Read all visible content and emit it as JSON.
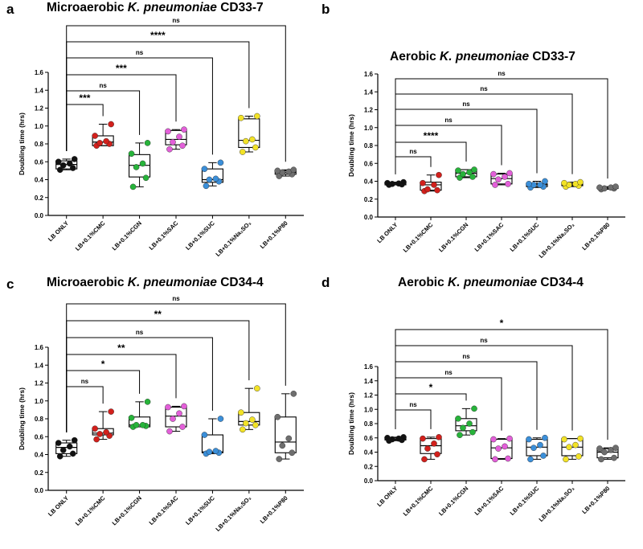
{
  "panels": [
    {
      "label": "a",
      "title": {
        "pre": "Microaerobic ",
        "species": "K. pneumoniae",
        "post": " CD33-7"
      }
    },
    {
      "label": "b",
      "title": {
        "pre": "Aerobic ",
        "species": "K. pneumoniae",
        "post": " CD33-7"
      }
    },
    {
      "label": "c",
      "title": {
        "pre": "Microaerobic ",
        "species": "K. pneumoniae",
        "post": " CD34-4"
      }
    },
    {
      "label": "d",
      "title": {
        "pre": "Aerobic ",
        "species": "K. pneumoniae",
        "post": " CD34-4"
      }
    }
  ],
  "chart_data": [
    {
      "type": "box",
      "title": "Microaerobic K. pneumoniae CD33-7",
      "xlabel": "",
      "ylabel": "Doubling time (hrs)",
      "ylim": [
        0,
        1.6
      ],
      "yticks": [
        "0.0",
        "0.2",
        "0.4",
        "0.6",
        "0.8",
        "1.0",
        "1.2",
        "1.4",
        "1.6"
      ],
      "categories": [
        "LB ONLY",
        "LB+0.1%CMC",
        "LB+0.1%CGN",
        "LB+0.1%SAC",
        "LB+0.1%SUC",
        "LB+0.1%Na₂SO₃",
        "LB+0.1%P80"
      ],
      "series_colors": [
        "#111111",
        "#d2201c",
        "#27b33a",
        "#e35fd9",
        "#3b8fd9",
        "#f2e227",
        "#6e6e6e"
      ],
      "boxes": [
        {
          "min": 0.51,
          "q1": 0.52,
          "median": 0.57,
          "q3": 0.61,
          "max": 0.63,
          "points": [
            0.51,
            0.53,
            0.56,
            0.58,
            0.6,
            0.63
          ]
        },
        {
          "min": 0.78,
          "q1": 0.78,
          "median": 0.82,
          "q3": 0.89,
          "max": 1.02,
          "points": [
            0.78,
            0.8,
            0.81,
            0.83,
            0.89,
            1.02
          ]
        },
        {
          "min": 0.32,
          "q1": 0.43,
          "median": 0.56,
          "q3": 0.68,
          "max": 0.81,
          "points": [
            0.32,
            0.42,
            0.54,
            0.58,
            0.69,
            0.81
          ]
        },
        {
          "min": 0.74,
          "q1": 0.79,
          "median": 0.85,
          "q3": 0.95,
          "max": 0.96,
          "points": [
            0.74,
            0.78,
            0.82,
            0.88,
            0.94,
            0.96
          ]
        },
        {
          "min": 0.33,
          "q1": 0.37,
          "median": 0.4,
          "q3": 0.52,
          "max": 0.59,
          "points": [
            0.33,
            0.38,
            0.4,
            0.41,
            0.52,
            0.59
          ]
        },
        {
          "min": 0.71,
          "q1": 0.76,
          "median": 0.84,
          "q3": 1.08,
          "max": 1.11,
          "points": [
            0.71,
            0.76,
            0.83,
            0.85,
            1.09,
            1.11
          ]
        },
        {
          "min": 0.44,
          "q1": 0.46,
          "median": 0.48,
          "q3": 0.5,
          "max": 0.51,
          "points": [
            0.44,
            0.46,
            0.48,
            0.49,
            0.5,
            0.51
          ]
        }
      ],
      "comparisons": [
        {
          "to": 1,
          "label": "***"
        },
        {
          "to": 2,
          "label": "ns"
        },
        {
          "to": 3,
          "label": "***"
        },
        {
          "to": 4,
          "label": "ns"
        },
        {
          "to": 5,
          "label": "****"
        },
        {
          "to": 6,
          "label": "ns"
        }
      ]
    },
    {
      "type": "box",
      "title": "Aerobic K. pneumoniae CD33-7",
      "xlabel": "",
      "ylabel": "Doubling time (hrs)",
      "ylim": [
        0,
        1.6
      ],
      "yticks": [
        "0.0",
        "0.2",
        "0.4",
        "0.6",
        "0.8",
        "1.0",
        "1.2",
        "1.4",
        "1.6"
      ],
      "categories": [
        "LB ONLY",
        "LB+0.1%CMC",
        "LB+0.1%CGN",
        "LB+0.1%SAC",
        "LB+0.1%SUC",
        "LB+0.1%Na₂SO₃",
        "LB+0.1%P80"
      ],
      "series_colors": [
        "#111111",
        "#d2201c",
        "#27b33a",
        "#e35fd9",
        "#3b8fd9",
        "#f2e227",
        "#6e6e6e"
      ],
      "boxes": [
        {
          "min": 0.36,
          "q1": 0.36,
          "median": 0.37,
          "q3": 0.38,
          "max": 0.39,
          "points": [
            0.36,
            0.365,
            0.37,
            0.375,
            0.38,
            0.39
          ]
        },
        {
          "min": 0.29,
          "q1": 0.3,
          "median": 0.36,
          "q3": 0.39,
          "max": 0.47,
          "points": [
            0.29,
            0.3,
            0.31,
            0.36,
            0.38,
            0.47
          ]
        },
        {
          "min": 0.44,
          "q1": 0.45,
          "median": 0.49,
          "q3": 0.53,
          "max": 0.53,
          "points": [
            0.44,
            0.45,
            0.48,
            0.5,
            0.52,
            0.53
          ]
        },
        {
          "min": 0.36,
          "q1": 0.37,
          "median": 0.43,
          "q3": 0.48,
          "max": 0.49,
          "points": [
            0.36,
            0.37,
            0.42,
            0.45,
            0.48,
            0.49
          ]
        },
        {
          "min": 0.33,
          "q1": 0.34,
          "median": 0.36,
          "q3": 0.37,
          "max": 0.4,
          "points": [
            0.33,
            0.34,
            0.36,
            0.36,
            0.37,
            0.4
          ]
        },
        {
          "min": 0.34,
          "q1": 0.35,
          "median": 0.36,
          "q3": 0.37,
          "max": 0.39,
          "points": [
            0.34,
            0.35,
            0.36,
            0.37,
            0.38,
            0.39
          ]
        },
        {
          "min": 0.31,
          "q1": 0.32,
          "median": 0.32,
          "q3": 0.33,
          "max": 0.34,
          "points": [
            0.31,
            0.32,
            0.32,
            0.33,
            0.33,
            0.34
          ]
        }
      ],
      "comparisons": [
        {
          "to": 1,
          "label": "ns"
        },
        {
          "to": 2,
          "label": "****"
        },
        {
          "to": 3,
          "label": "ns"
        },
        {
          "to": 4,
          "label": "ns"
        },
        {
          "to": 5,
          "label": "ns"
        },
        {
          "to": 6,
          "label": "ns"
        }
      ]
    },
    {
      "type": "box",
      "title": "Microaerobic K. pneumoniae CD34-4",
      "xlabel": "",
      "ylabel": "Doubling time (hrs)",
      "ylim": [
        0,
        1.6
      ],
      "yticks": [
        "0.0",
        "0.2",
        "0.4",
        "0.6",
        "0.8",
        "1.0",
        "1.2",
        "1.4",
        "1.6"
      ],
      "categories": [
        "LB ONLY",
        "LB+0.1%CMC",
        "LB+0.1%CGN",
        "LB+0.1%SAC",
        "LB+0.1%SUC",
        "LB+0.1%Na₂SO₃",
        "LB+0.1%P80"
      ],
      "series_colors": [
        "#111111",
        "#d2201c",
        "#27b33a",
        "#e35fd9",
        "#3b8fd9",
        "#f2e227",
        "#6e6e6e"
      ],
      "boxes": [
        {
          "min": 0.38,
          "q1": 0.41,
          "median": 0.48,
          "q3": 0.53,
          "max": 0.56,
          "points": [
            0.38,
            0.41,
            0.45,
            0.49,
            0.53,
            0.56
          ]
        },
        {
          "min": 0.57,
          "q1": 0.62,
          "median": 0.64,
          "q3": 0.69,
          "max": 0.88,
          "points": [
            0.57,
            0.61,
            0.63,
            0.65,
            0.69,
            0.88
          ]
        },
        {
          "min": 0.71,
          "q1": 0.71,
          "median": 0.73,
          "q3": 0.82,
          "max": 0.99,
          "points": [
            0.71,
            0.72,
            0.73,
            0.73,
            0.81,
            0.99
          ]
        },
        {
          "min": 0.66,
          "q1": 0.71,
          "median": 0.83,
          "q3": 0.93,
          "max": 0.94,
          "points": [
            0.66,
            0.71,
            0.8,
            0.86,
            0.93,
            0.94
          ]
        },
        {
          "min": 0.41,
          "q1": 0.42,
          "median": 0.43,
          "q3": 0.62,
          "max": 0.8,
          "points": [
            0.41,
            0.42,
            0.43,
            0.44,
            0.62,
            0.8
          ]
        },
        {
          "min": 0.68,
          "q1": 0.73,
          "median": 0.77,
          "q3": 0.87,
          "max": 1.14,
          "points": [
            0.68,
            0.73,
            0.75,
            0.79,
            0.87,
            1.14
          ]
        },
        {
          "min": 0.35,
          "q1": 0.42,
          "median": 0.54,
          "q3": 0.82,
          "max": 1.08,
          "points": [
            0.35,
            0.42,
            0.5,
            0.58,
            0.82,
            1.08
          ]
        }
      ],
      "comparisons": [
        {
          "to": 1,
          "label": "ns"
        },
        {
          "to": 2,
          "label": "*"
        },
        {
          "to": 3,
          "label": "**"
        },
        {
          "to": 4,
          "label": "ns"
        },
        {
          "to": 5,
          "label": "**"
        },
        {
          "to": 6,
          "label": "ns"
        }
      ]
    },
    {
      "type": "box",
      "title": "Aerobic K. pneumoniae CD34-4",
      "xlabel": "",
      "ylabel": "Doubling time (hrs)",
      "ylim": [
        0,
        1.6
      ],
      "yticks": [
        "0.0",
        "0.2",
        "0.4",
        "0.6",
        "0.8",
        "1.0",
        "1.2",
        "1.4",
        "1.6"
      ],
      "categories": [
        "LB ONLY",
        "LB+0.1%CMC",
        "LB+0.1%CGN",
        "LB+0.1%SAC",
        "LB+0.1%SUC",
        "LB+0.1%Na₂SO₃",
        "LB+0.1%P80"
      ],
      "series_colors": [
        "#111111",
        "#d2201c",
        "#27b33a",
        "#e35fd9",
        "#3b8fd9",
        "#f2e227",
        "#6e6e6e"
      ],
      "boxes": [
        {
          "min": 0.56,
          "q1": 0.57,
          "median": 0.58,
          "q3": 0.6,
          "max": 0.61,
          "points": [
            0.56,
            0.57,
            0.58,
            0.59,
            0.6,
            0.61
          ]
        },
        {
          "min": 0.3,
          "q1": 0.38,
          "median": 0.49,
          "q3": 0.59,
          "max": 0.61,
          "points": [
            0.3,
            0.37,
            0.45,
            0.52,
            0.59,
            0.61
          ]
        },
        {
          "min": 0.64,
          "q1": 0.7,
          "median": 0.77,
          "q3": 0.87,
          "max": 1.01,
          "points": [
            0.64,
            0.68,
            0.74,
            0.8,
            0.87,
            1.01
          ]
        },
        {
          "min": 0.3,
          "q1": 0.31,
          "median": 0.46,
          "q3": 0.58,
          "max": 0.59,
          "points": [
            0.3,
            0.31,
            0.45,
            0.48,
            0.58,
            0.59
          ]
        },
        {
          "min": 0.3,
          "q1": 0.35,
          "median": 0.47,
          "q3": 0.58,
          "max": 0.6,
          "points": [
            0.3,
            0.35,
            0.46,
            0.5,
            0.58,
            0.6
          ]
        },
        {
          "min": 0.3,
          "q1": 0.35,
          "median": 0.47,
          "q3": 0.59,
          "max": 0.59,
          "points": [
            0.3,
            0.34,
            0.47,
            0.5,
            0.58,
            0.59
          ]
        },
        {
          "min": 0.3,
          "q1": 0.32,
          "median": 0.4,
          "q3": 0.45,
          "max": 0.46,
          "points": [
            0.3,
            0.32,
            0.4,
            0.43,
            0.45,
            0.46
          ]
        }
      ],
      "comparisons": [
        {
          "to": 1,
          "label": "ns"
        },
        {
          "to": 2,
          "label": "*"
        },
        {
          "to": 3,
          "label": "ns"
        },
        {
          "to": 4,
          "label": "ns"
        },
        {
          "to": 5,
          "label": "ns"
        },
        {
          "to": 6,
          "label": "*"
        }
      ]
    }
  ]
}
